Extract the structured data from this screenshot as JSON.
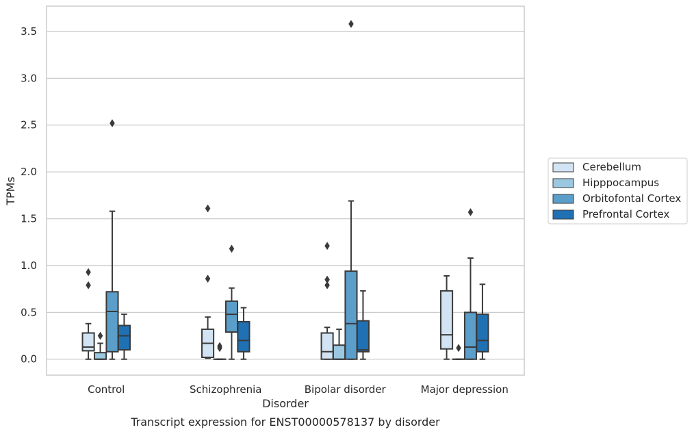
{
  "chart_data": {
    "type": "box",
    "caption": "Transcript expression for ENST00000578137 by disorder",
    "xlabel": "Disorder",
    "ylabel": "TPMs",
    "ylim": [
      -0.17,
      3.77
    ],
    "yticks": [
      0.0,
      0.5,
      1.0,
      1.5,
      2.0,
      2.5,
      3.0,
      3.5
    ],
    "ytick_labels": [
      "0.0",
      "0.5",
      "1.0",
      "1.5",
      "2.0",
      "2.5",
      "3.0",
      "3.5"
    ],
    "grid": "horizontal",
    "legend_position": "right",
    "categories": [
      "Control",
      "Schizophrenia",
      "Bipolar disorder",
      "Major depression"
    ],
    "series": [
      {
        "name": "Cerebellum",
        "color": "#d2e3f3",
        "boxes": [
          {
            "whislo": 0.0,
            "q1": 0.09,
            "med": 0.13,
            "q3": 0.28,
            "whishi": 0.38,
            "fliers": [
              0.93,
              0.79
            ]
          },
          {
            "whislo": 0.01,
            "q1": 0.02,
            "med": 0.17,
            "q3": 0.32,
            "whishi": 0.45,
            "fliers": [
              1.61,
              0.86
            ]
          },
          {
            "whislo": 0.0,
            "q1": 0.0,
            "med": 0.08,
            "q3": 0.28,
            "whishi": 0.34,
            "fliers": [
              1.21,
              0.85,
              0.79
            ]
          },
          {
            "whislo": 0.0,
            "q1": 0.11,
            "med": 0.26,
            "q3": 0.73,
            "whishi": 0.89,
            "fliers": []
          }
        ]
      },
      {
        "name": "Hipppocampus",
        "color": "#9ac8e0",
        "boxes": [
          {
            "whislo": 0.0,
            "q1": 0.0,
            "med": 0.0,
            "q3": 0.07,
            "whishi": 0.17,
            "fliers": [
              0.25
            ]
          },
          {
            "whislo": 0.0,
            "q1": 0.0,
            "med": 0.0,
            "q3": 0.0,
            "whishi": 0.0,
            "fliers": [
              0.14,
              0.12
            ]
          },
          {
            "whislo": 0.0,
            "q1": 0.0,
            "med": 0.0,
            "q3": 0.15,
            "whishi": 0.32,
            "fliers": []
          },
          {
            "whislo": 0.0,
            "q1": 0.0,
            "med": 0.0,
            "q3": 0.0,
            "whishi": 0.0,
            "fliers": [
              0.12
            ]
          }
        ]
      },
      {
        "name": "Orbitofontal Cortex",
        "color": "#5a9ec9",
        "boxes": [
          {
            "whislo": 0.0,
            "q1": 0.08,
            "med": 0.51,
            "q3": 0.72,
            "whishi": 1.58,
            "fliers": [
              2.52
            ]
          },
          {
            "whislo": 0.0,
            "q1": 0.29,
            "med": 0.48,
            "q3": 0.62,
            "whishi": 0.76,
            "fliers": [
              1.18
            ]
          },
          {
            "whislo": 0.0,
            "q1": 0.0,
            "med": 0.38,
            "q3": 0.94,
            "whishi": 1.69,
            "fliers": [
              3.58
            ]
          },
          {
            "whislo": 0.0,
            "q1": 0.0,
            "med": 0.13,
            "q3": 0.5,
            "whishi": 1.08,
            "fliers": [
              1.57
            ]
          }
        ]
      },
      {
        "name": "Prefrontal Cortex",
        "color": "#2070b4",
        "boxes": [
          {
            "whislo": 0.0,
            "q1": 0.1,
            "med": 0.25,
            "q3": 0.36,
            "whishi": 0.48,
            "fliers": []
          },
          {
            "whislo": 0.0,
            "q1": 0.08,
            "med": 0.2,
            "q3": 0.4,
            "whishi": 0.55,
            "fliers": []
          },
          {
            "whislo": 0.0,
            "q1": 0.08,
            "med": 0.1,
            "q3": 0.41,
            "whishi": 0.73,
            "fliers": []
          },
          {
            "whislo": 0.0,
            "q1": 0.08,
            "med": 0.2,
            "q3": 0.48,
            "whishi": 0.8,
            "fliers": []
          }
        ]
      }
    ]
  }
}
